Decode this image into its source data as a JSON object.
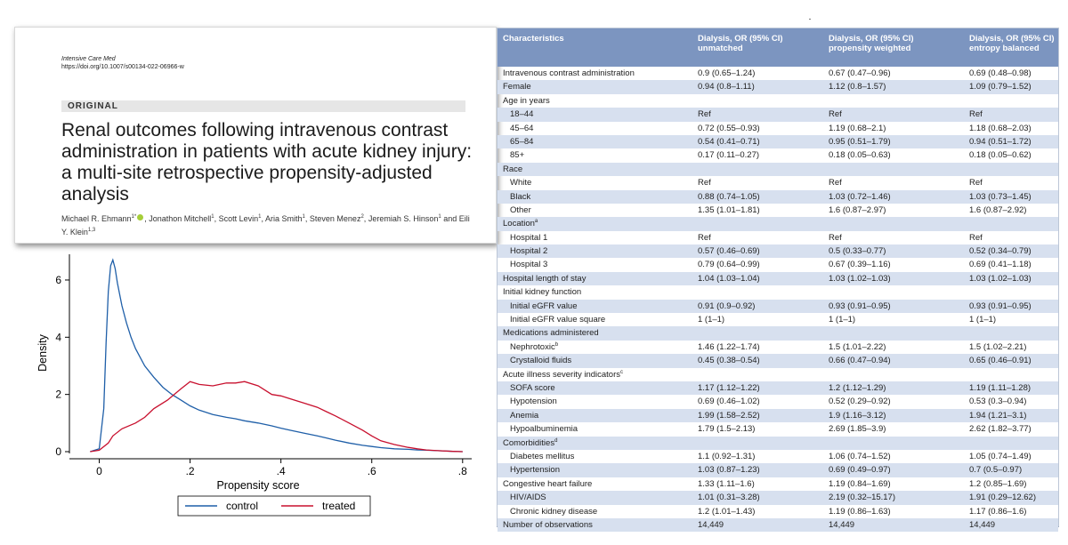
{
  "paper": {
    "journal": "Intensive Care Med",
    "doi": "https://doi.org/10.1007/s00134-022-06966-w",
    "section": "ORIGINAL",
    "title": "Renal outcomes following intravenous contrast administration in patients with acute kidney injury: a multi-site retrospective propensity-adjusted analysis",
    "authors": [
      {
        "name": "Michael R. Ehmann",
        "sup": "1*",
        "orcid": true
      },
      {
        "name": "Jonathon Mitchell",
        "sup": "1"
      },
      {
        "name": "Scott Levin",
        "sup": "1"
      },
      {
        "name": "Aria Smith",
        "sup": "1"
      },
      {
        "name": "Steven Menez",
        "sup": "2"
      },
      {
        "name": "Jeremiah S. Hinson",
        "sup": "1"
      },
      {
        "name": "Eili Y. Klein",
        "sup": "1,3"
      }
    ]
  },
  "chart_data": {
    "type": "line",
    "title": "",
    "xlabel": "Propensity score",
    "ylabel": "Density",
    "xlim": [
      -0.05,
      0.82
    ],
    "ylim": [
      0,
      6.9
    ],
    "xticks": [
      0,
      0.2,
      0.4,
      0.6,
      0.8
    ],
    "xtick_labels": [
      "0",
      ".2",
      ".4",
      ".6",
      ".8"
    ],
    "yticks": [
      0,
      2,
      4,
      6
    ],
    "grid": false,
    "legend": "bottom",
    "series": [
      {
        "name": "control",
        "color": "#1f5fa8",
        "x": [
          -0.02,
          0.0,
          0.01,
          0.015,
          0.02,
          0.025,
          0.03,
          0.035,
          0.04,
          0.05,
          0.06,
          0.07,
          0.08,
          0.1,
          0.12,
          0.14,
          0.16,
          0.18,
          0.2,
          0.22,
          0.25,
          0.28,
          0.3,
          0.32,
          0.35,
          0.38,
          0.4,
          0.42,
          0.45,
          0.48,
          0.5,
          0.52,
          0.55,
          0.58,
          0.6,
          0.62,
          0.65,
          0.68,
          0.7,
          0.72,
          0.75,
          0.78,
          0.8
        ],
        "y": [
          0.0,
          0.1,
          1.5,
          3.8,
          5.6,
          6.5,
          6.7,
          6.4,
          5.9,
          5.1,
          4.5,
          4.0,
          3.6,
          3.0,
          2.6,
          2.25,
          2.0,
          1.8,
          1.6,
          1.45,
          1.3,
          1.2,
          1.15,
          1.08,
          1.0,
          0.9,
          0.82,
          0.75,
          0.65,
          0.55,
          0.48,
          0.4,
          0.3,
          0.22,
          0.18,
          0.14,
          0.1,
          0.08,
          0.06,
          0.05,
          0.03,
          0.01,
          0.0
        ]
      },
      {
        "name": "treated",
        "color": "#c8102e",
        "x": [
          -0.02,
          0.0,
          0.02,
          0.03,
          0.05,
          0.08,
          0.1,
          0.12,
          0.15,
          0.18,
          0.2,
          0.22,
          0.25,
          0.28,
          0.3,
          0.32,
          0.35,
          0.38,
          0.4,
          0.42,
          0.45,
          0.48,
          0.5,
          0.52,
          0.55,
          0.58,
          0.6,
          0.62,
          0.65,
          0.68,
          0.7,
          0.72,
          0.75,
          0.78,
          0.8
        ],
        "y": [
          0.0,
          0.05,
          0.3,
          0.55,
          0.8,
          1.0,
          1.2,
          1.5,
          1.8,
          2.2,
          2.45,
          2.35,
          2.3,
          2.4,
          2.4,
          2.45,
          2.3,
          2.0,
          1.95,
          1.85,
          1.7,
          1.55,
          1.4,
          1.25,
          1.0,
          0.75,
          0.55,
          0.38,
          0.25,
          0.15,
          0.1,
          0.06,
          0.03,
          0.01,
          0.0
        ]
      }
    ]
  },
  "table": {
    "headers": [
      "Characteristics",
      "Dialysis, OR (95% CI)\nunmatched",
      "Dialysis, OR (95% CI)\npropensity weighted",
      "Dialysis, OR (95% CI)\nentropy balanced"
    ],
    "rows": [
      {
        "label": "Intravenous contrast administration",
        "indent": false,
        "v": [
          "0.9 (0.65–1.24)",
          "0.67 (0.47–0.96)",
          "0.69 (0.48–0.98)"
        ]
      },
      {
        "label": "Female",
        "indent": false,
        "v": [
          "0.94 (0.8–1.11)",
          "1.12 (0.8–1.57)",
          "1.09 (0.79–1.52)"
        ]
      },
      {
        "label": "Age in years",
        "indent": false,
        "v": [
          "",
          "",
          ""
        ]
      },
      {
        "label": "18–44",
        "indent": true,
        "v": [
          "Ref",
          "Ref",
          "Ref"
        ]
      },
      {
        "label": "45–64",
        "indent": true,
        "v": [
          "0.72 (0.55–0.93)",
          "1.19 (0.68–2.1)",
          "1.18 (0.68–2.03)"
        ]
      },
      {
        "label": "65–84",
        "indent": true,
        "v": [
          "0.54 (0.41–0.71)",
          "0.95 (0.51–1.79)",
          "0.94 (0.51–1.72)"
        ]
      },
      {
        "label": "85+",
        "indent": true,
        "v": [
          "0.17 (0.11–0.27)",
          "0.18 (0.05–0.63)",
          "0.18 (0.05–0.62)"
        ]
      },
      {
        "label": "Race",
        "indent": false,
        "v": [
          "",
          "",
          ""
        ]
      },
      {
        "label": "White",
        "indent": true,
        "v": [
          "Ref",
          "Ref",
          "Ref"
        ]
      },
      {
        "label": "Black",
        "indent": true,
        "v": [
          "0.88 (0.74–1.05)",
          "1.03 (0.72–1.46)",
          "1.03 (0.73–1.45)"
        ]
      },
      {
        "label": "Other",
        "indent": true,
        "v": [
          "1.35 (1.01–1.81)",
          "1.6 (0.87–2.97)",
          "1.6 (0.87–2.92)"
        ]
      },
      {
        "label": "Location",
        "sup": "a",
        "indent": false,
        "v": [
          "",
          "",
          ""
        ]
      },
      {
        "label": "Hospital 1",
        "indent": true,
        "v": [
          "Ref",
          "Ref",
          "Ref"
        ]
      },
      {
        "label": "Hospital 2",
        "indent": true,
        "v": [
          "0.57 (0.46–0.69)",
          "0.5 (0.33–0.77)",
          "0.52 (0.34–0.79)"
        ]
      },
      {
        "label": "Hospital 3",
        "indent": true,
        "v": [
          "0.79 (0.64–0.99)",
          "0.67 (0.39–1.16)",
          "0.69 (0.41–1.18)"
        ]
      },
      {
        "label": "Hospital length of stay",
        "indent": false,
        "v": [
          "1.04 (1.03–1.04)",
          "1.03 (1.02–1.03)",
          "1.03 (1.02–1.03)"
        ]
      },
      {
        "label": "Initial kidney function",
        "indent": false,
        "v": [
          "",
          "",
          ""
        ]
      },
      {
        "label": "Initial eGFR value",
        "indent": true,
        "v": [
          "0.91 (0.9–0.92)",
          "0.93 (0.91–0.95)",
          "0.93 (0.91–0.95)"
        ]
      },
      {
        "label": "Initial eGFR value square",
        "indent": true,
        "v": [
          "1 (1–1)",
          "1 (1–1)",
          "1 (1–1)"
        ]
      },
      {
        "label": "Medications administered",
        "indent": false,
        "v": [
          "",
          "",
          ""
        ]
      },
      {
        "label": "Nephrotoxic",
        "sup": "b",
        "indent": true,
        "v": [
          "1.46 (1.22–1.74)",
          "1.5 (1.01–2.22)",
          "1.5 (1.02–2.21)"
        ]
      },
      {
        "label": "Crystalloid fluids",
        "indent": true,
        "v": [
          "0.45 (0.38–0.54)",
          "0.66 (0.47–0.94)",
          "0.65 (0.46–0.91)"
        ]
      },
      {
        "label": "Acute illness severity indicators",
        "sup": "c",
        "indent": false,
        "v": [
          "",
          "",
          ""
        ]
      },
      {
        "label": "SOFA score",
        "indent": true,
        "v": [
          "1.17 (1.12–1.22)",
          "1.2 (1.12–1.29)",
          "1.19 (1.11–1.28)"
        ]
      },
      {
        "label": "Hypotension",
        "indent": true,
        "v": [
          "0.69 (0.46–1.02)",
          "0.52 (0.29–0.92)",
          "0.53 (0.3–0.94)"
        ]
      },
      {
        "label": "Anemia",
        "indent": true,
        "v": [
          "1.99 (1.58–2.52)",
          "1.9 (1.16–3.12)",
          "1.94 (1.21–3.1)"
        ]
      },
      {
        "label": "Hypoalbuminemia",
        "indent": true,
        "v": [
          "1.79 (1.5–2.13)",
          "2.69 (1.85–3.9)",
          "2.62 (1.82–3.77)"
        ]
      },
      {
        "label": "Comorbidities",
        "sup": "d",
        "indent": false,
        "v": [
          "",
          "",
          ""
        ]
      },
      {
        "label": "Diabetes mellitus",
        "indent": true,
        "v": [
          "1.1 (0.92–1.31)",
          "1.06 (0.74–1.52)",
          "1.05 (0.74–1.49)"
        ]
      },
      {
        "label": "Hypertension",
        "indent": true,
        "v": [
          "1.03 (0.87–1.23)",
          "0.69 (0.49–0.97)",
          "0.7 (0.5–0.97)"
        ]
      },
      {
        "label": "Congestive heart failure",
        "indent": false,
        "v": [
          "1.33 (1.11–1.6)",
          "1.19 (0.84–1.69)",
          "1.2 (0.85–1.69)"
        ]
      },
      {
        "label": "HIV/AIDS",
        "indent": true,
        "v": [
          "1.01 (0.31–3.28)",
          "2.19 (0.32–15.17)",
          "1.91 (0.29–12.62)"
        ]
      },
      {
        "label": "Chronic kidney disease",
        "indent": true,
        "v": [
          "1.2 (1.01–1.43)",
          "1.19 (0.86–1.63)",
          "1.17 (0.86–1.6)"
        ]
      },
      {
        "label": "Number of observations",
        "indent": false,
        "v": [
          "14,449",
          "14,449",
          "14,449"
        ]
      }
    ]
  }
}
